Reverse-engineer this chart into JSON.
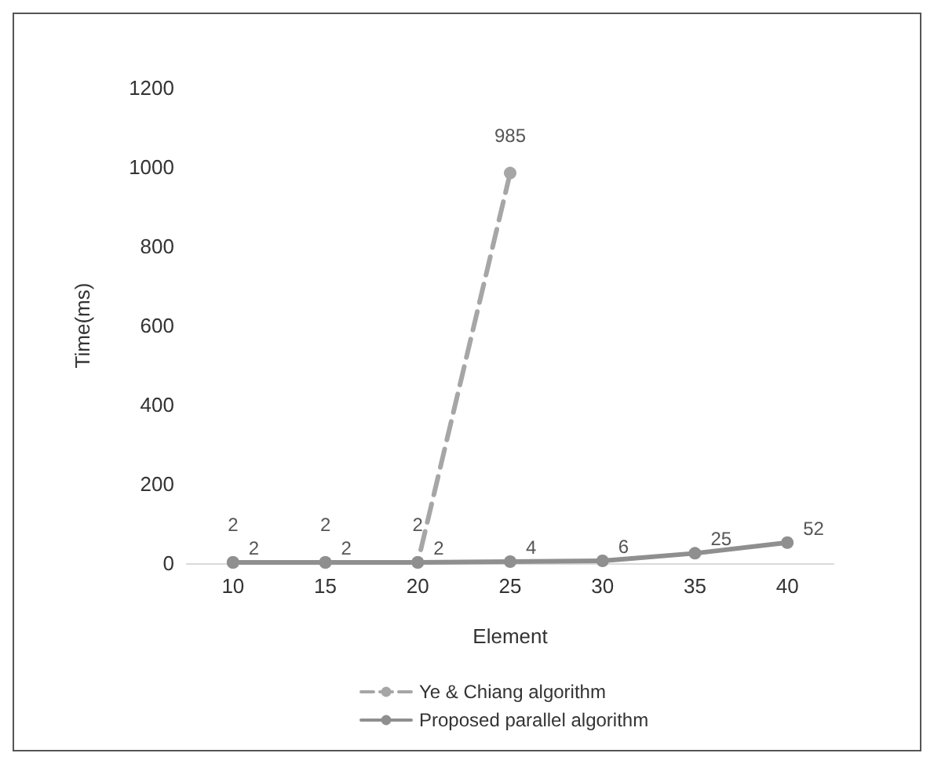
{
  "chart_data": {
    "type": "line",
    "xlabel": "Element",
    "ylabel": "Time(ms)",
    "categories": [
      "10",
      "15",
      "20",
      "25",
      "30",
      "35",
      "40"
    ],
    "series": [
      {
        "name": "Ye & Chiang algorithm",
        "color": "#a6a6a6",
        "line_style": "dashed",
        "values": [
          2,
          2,
          2,
          985,
          null,
          null,
          null
        ]
      },
      {
        "name": "Proposed parallel algorithm",
        "color": "#8f8f8f",
        "line_style": "solid",
        "values": [
          2,
          2,
          2,
          4,
          6,
          25,
          52
        ]
      }
    ],
    "ylim": [
      0,
      1200
    ],
    "yticks": [
      0,
      200,
      400,
      600,
      800,
      1000,
      1200
    ],
    "grid": false,
    "legend": "bottom",
    "marker": "circle",
    "data_labels": true
  }
}
